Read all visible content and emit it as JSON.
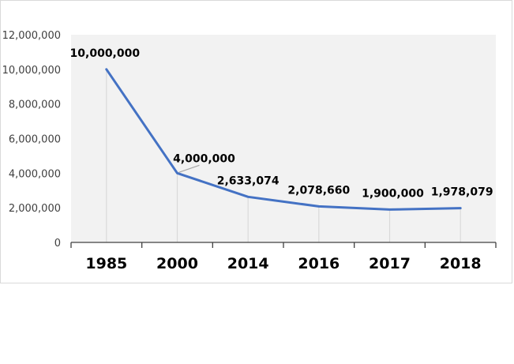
{
  "chart_data": {
    "type": "line",
    "categories": [
      "1985",
      "2000",
      "2014",
      "2016",
      "2017",
      "2018"
    ],
    "series": [
      {
        "values": [
          10000000,
          4000000,
          2633074,
          2078660,
          1900000,
          1978079
        ]
      }
    ],
    "data_labels": [
      "10,000,000",
      "4,000,000",
      "2,633,074",
      "2,078,660",
      "1,900,000",
      "1,978,079"
    ],
    "y_ticks": [
      0,
      2000000,
      4000000,
      6000000,
      8000000,
      10000000,
      12000000
    ],
    "y_tick_labels": [
      "0",
      "2,000,000",
      "4,000,000",
      "6,000,000",
      "8,000,000",
      "10,000,000",
      "12,000,000"
    ],
    "ylim": [
      0,
      12000000
    ],
    "title": "",
    "xlabel": "",
    "ylabel": "",
    "grid": false,
    "legend": "none",
    "drop_lines": true,
    "colors": {
      "line": "#4472c4",
      "plot_area": "#f2f2f2",
      "drop_line": "#d9d9d9",
      "axis": "#404040",
      "leader_line": "#a6a6a6"
    }
  }
}
